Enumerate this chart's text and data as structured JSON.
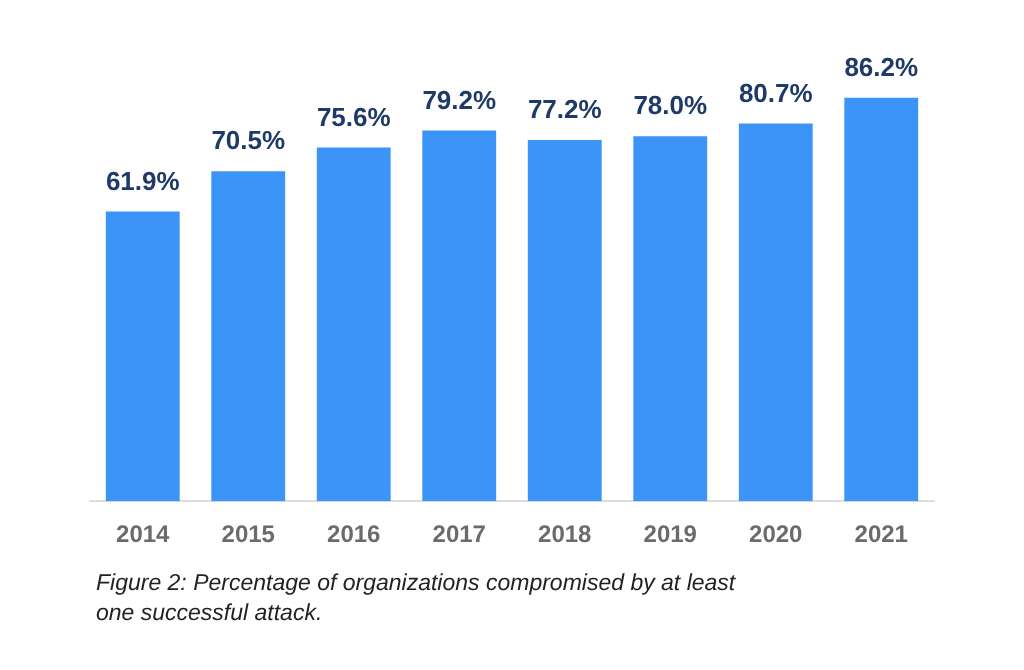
{
  "chart_data": {
    "type": "bar",
    "categories": [
      "2014",
      "2015",
      "2016",
      "2017",
      "2018",
      "2019",
      "2020",
      "2021"
    ],
    "values": [
      61.9,
      70.5,
      75.6,
      79.2,
      77.2,
      78.0,
      80.7,
      86.2
    ],
    "value_labels": [
      "61.9%",
      "70.5%",
      "75.6%",
      "79.2%",
      "77.2%",
      "78.0%",
      "80.7%",
      "86.2%"
    ],
    "color": "#3b94f6",
    "tick_labels": "x",
    "grid": false,
    "legend": false,
    "annotations": [
      "Figure 2: Percentage of organizations compromised by at least one successful attack."
    ]
  }
}
